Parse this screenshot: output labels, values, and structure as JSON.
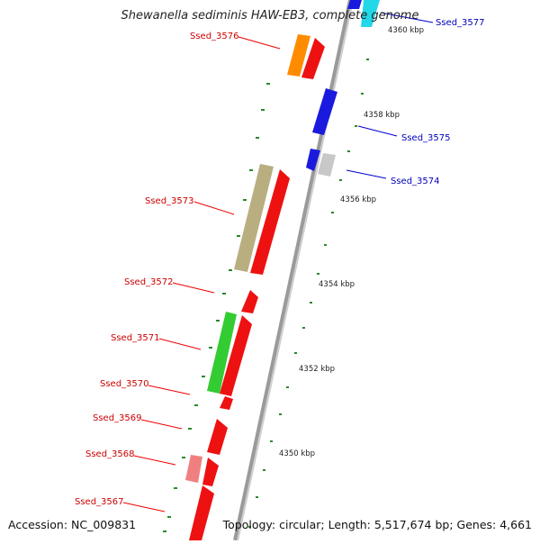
{
  "title": "Shewanella sediminis HAW-EB3, complete genome",
  "footer": {
    "accession": "Accession: NC_009831",
    "summary": "Topology: circular; Length: 5,517,674 bp; Genes: 4,661"
  },
  "map": {
    "ticks": [
      "4360 kbp",
      "4358 kbp",
      "4356 kbp",
      "4354 kbp",
      "4352 kbp",
      "4350 kbp"
    ],
    "left_labels": [
      "Ssed_3576",
      "Ssed_3573",
      "Ssed_3572",
      "Ssed_3571",
      "Ssed_3570",
      "Ssed_3569",
      "Ssed_3568",
      "Ssed_3567"
    ],
    "right_labels": [
      "Ssed_3577",
      "Ssed_3575",
      "Ssed_3574"
    ]
  },
  "colors": {
    "forward": "#ee1111",
    "reverse": "#1a1adf",
    "left_label": "#cc0000",
    "right_label": "#0000bb",
    "backbone": "#9a9a9a",
    "gc_dash": "#2a8a2a"
  }
}
